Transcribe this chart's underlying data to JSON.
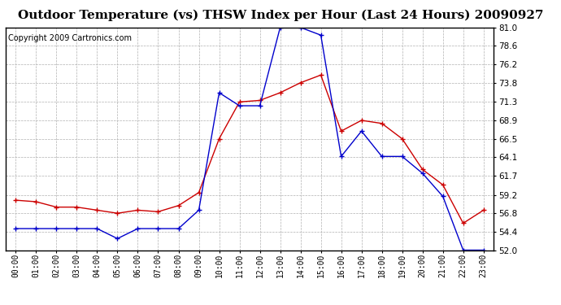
{
  "title": "Outdoor Temperature (vs) THSW Index per Hour (Last 24 Hours) 20090927",
  "copyright": "Copyright 2009 Cartronics.com",
  "hours": [
    "00:00",
    "01:00",
    "02:00",
    "03:00",
    "04:00",
    "05:00",
    "06:00",
    "07:00",
    "08:00",
    "09:00",
    "10:00",
    "11:00",
    "12:00",
    "13:00",
    "14:00",
    "15:00",
    "16:00",
    "17:00",
    "18:00",
    "19:00",
    "20:00",
    "21:00",
    "22:00",
    "23:00"
  ],
  "temp": [
    58.5,
    58.3,
    57.6,
    57.6,
    57.2,
    56.8,
    57.2,
    57.0,
    57.8,
    59.5,
    66.5,
    71.3,
    71.5,
    72.5,
    73.8,
    74.8,
    67.5,
    68.9,
    68.5,
    66.5,
    62.5,
    60.5,
    55.5,
    57.2
  ],
  "thsw": [
    54.8,
    54.8,
    54.8,
    54.8,
    54.8,
    53.5,
    54.8,
    54.8,
    54.8,
    57.2,
    72.5,
    70.8,
    70.8,
    81.0,
    81.0,
    80.0,
    64.2,
    67.5,
    64.2,
    64.2,
    62.0,
    59.0,
    52.0,
    52.0
  ],
  "ylim_min": 52.0,
  "ylim_max": 81.0,
  "yticks": [
    52.0,
    54.4,
    56.8,
    59.2,
    61.7,
    64.1,
    66.5,
    68.9,
    71.3,
    73.8,
    76.2,
    78.6,
    81.0
  ],
  "temp_color": "#cc0000",
  "thsw_color": "#0000cc",
  "bg_color": "#ffffff",
  "plot_bg_color": "#ffffff",
  "grid_color": "#b0b0b0",
  "title_fontsize": 11,
  "copyright_fontsize": 7,
  "tick_fontsize": 7,
  "ytick_fontsize": 7.5
}
